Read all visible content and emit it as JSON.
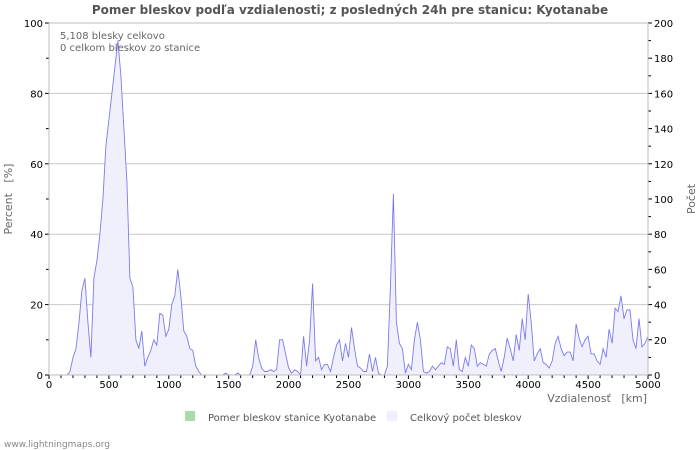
{
  "chart_data": {
    "type": "area",
    "title": "Pomer bleskov podľa vzdialenosti; z posledných 24h pre stanicu: Kyotanabe",
    "annotations": [
      "5,108 blesky celkovo",
      "0 celkom bleskov zo stanice"
    ],
    "xlabel": "Vzdialenosť   [km]",
    "ylabel_left": "Percent   [%]",
    "ylabel_right": "Počet",
    "xlim": [
      0,
      5000
    ],
    "ylim_left": [
      0,
      100
    ],
    "ylim_right": [
      0,
      200
    ],
    "x_ticks": [
      "0",
      "500",
      "1000",
      "1500",
      "2000",
      "2500",
      "3000",
      "3500",
      "4000",
      "4500",
      "5000"
    ],
    "y_left_ticks": [
      "0",
      "20",
      "40",
      "60",
      "80",
      "100"
    ],
    "y_right_ticks": [
      "0",
      "20",
      "40",
      "60",
      "80",
      "100",
      "120",
      "140",
      "160",
      "180",
      "200"
    ],
    "grid": true,
    "legend_position": "bottom",
    "x_step": 25,
    "series": [
      {
        "name": "Pomer bleskov stanice Kyotanabe",
        "color": "#a8dca8",
        "axis": "left",
        "values": []
      },
      {
        "name": "Celkový počet bleskov",
        "color": "#7b7bf0",
        "fill": "#f0f0fc",
        "axis": "right",
        "values": [
          0,
          0,
          0,
          0,
          0,
          0,
          0,
          2,
          10,
          15,
          30,
          48,
          55,
          30,
          10,
          55,
          65,
          80,
          100,
          130,
          145,
          160,
          175,
          190,
          170,
          140,
          110,
          55,
          50,
          20,
          15,
          25,
          5,
          10,
          14,
          20,
          17,
          35,
          34,
          22,
          26,
          40,
          45,
          60,
          45,
          25,
          22,
          15,
          14,
          5,
          2,
          0,
          0,
          0,
          0,
          0,
          0,
          0,
          0,
          1,
          0,
          0,
          0,
          1,
          0,
          0,
          0,
          0,
          5,
          20,
          10,
          4,
          2,
          2,
          3,
          2,
          3,
          20,
          20,
          12,
          4,
          1,
          3,
          2,
          0,
          22,
          5,
          20,
          52,
          8,
          10,
          3,
          6,
          6,
          2,
          10,
          17,
          20,
          8,
          18,
          10,
          27,
          15,
          5,
          4,
          2,
          2,
          12,
          2,
          10,
          1,
          0,
          0,
          5,
          50,
          103,
          30,
          18,
          15,
          1,
          6,
          3,
          20,
          30,
          20,
          2,
          1,
          2,
          5,
          3,
          5,
          7,
          6,
          16,
          15,
          5,
          20,
          3,
          2,
          10,
          5,
          17,
          15,
          5,
          7,
          6,
          5,
          12,
          14,
          15,
          8,
          2,
          10,
          21,
          15,
          8,
          23,
          14,
          32,
          20,
          46,
          30,
          8,
          12,
          15,
          7,
          6,
          4,
          8,
          18,
          22,
          15,
          11,
          13,
          13,
          8,
          29,
          21,
          16,
          20,
          22,
          12,
          12,
          8,
          6,
          15,
          10,
          26,
          18,
          38,
          36,
          45,
          32,
          37,
          37,
          20,
          15,
          32,
          16,
          18,
          22
        ]
      }
    ]
  },
  "footer": "www.lightningmaps.org"
}
